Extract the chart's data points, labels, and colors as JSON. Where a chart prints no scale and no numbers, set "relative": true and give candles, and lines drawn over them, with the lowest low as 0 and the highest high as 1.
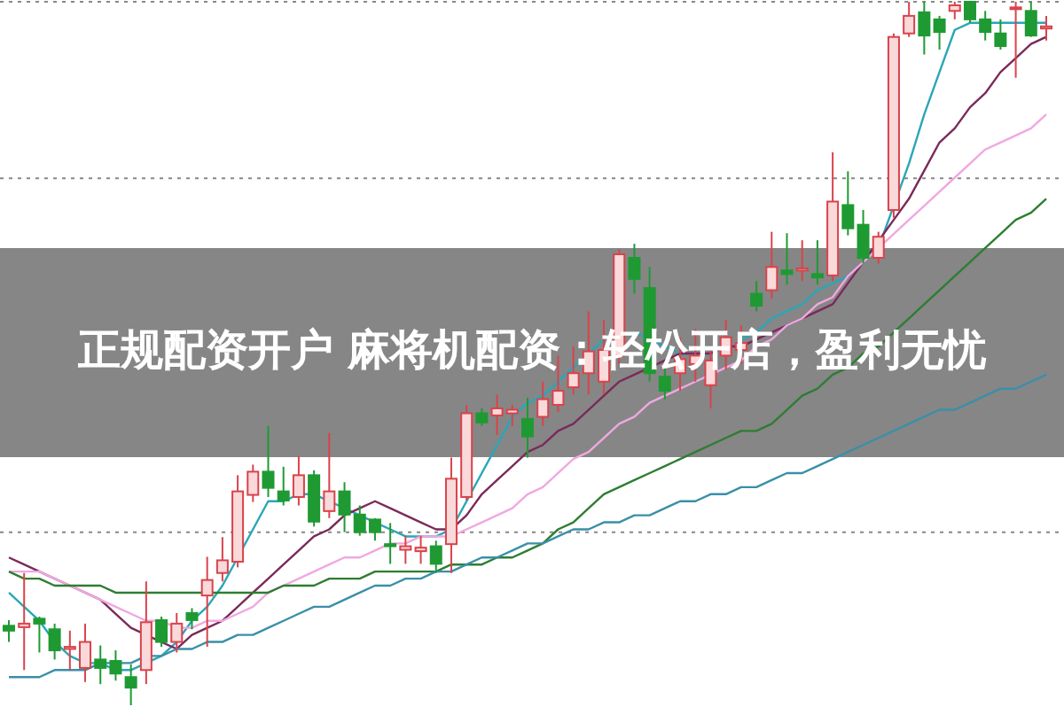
{
  "chart_data": {
    "type": "candlestick",
    "title": "正规配资开户 麻将机配资：轻松开店，盈利无忧",
    "relative": true,
    "categories": [
      null,
      null,
      null,
      null,
      null,
      null,
      null,
      null,
      null,
      null,
      null,
      null,
      null,
      null,
      null,
      null,
      null,
      null,
      null,
      null,
      null,
      null,
      null,
      null,
      null,
      null,
      null,
      null,
      null,
      null,
      null,
      null,
      null,
      null,
      null,
      null,
      null,
      null,
      null,
      null,
      null,
      null,
      null,
      null,
      null,
      null,
      null,
      null,
      null,
      null,
      null,
      null,
      null,
      null,
      null,
      null,
      null,
      null,
      null,
      null,
      null,
      null,
      null,
      null,
      null,
      null,
      null,
      null,
      null
    ],
    "ohlc": [
      [
        0.113,
        0.121,
        0.09,
        0.106
      ],
      [
        0.111,
        0.188,
        0.05,
        0.116
      ],
      [
        0.123,
        0.126,
        0.075,
        0.116
      ],
      [
        0.108,
        0.116,
        0.065,
        0.078
      ],
      [
        0.08,
        0.106,
        0.05,
        0.083
      ],
      [
        0.053,
        0.116,
        0.033,
        0.09
      ],
      [
        0.065,
        0.085,
        0.03,
        0.053
      ],
      [
        0.063,
        0.078,
        0.035,
        0.045
      ],
      [
        0.04,
        0.058,
        0,
        0.025
      ],
      [
        0.05,
        0.176,
        0.03,
        0.118
      ],
      [
        0.121,
        0.126,
        0.083,
        0.09
      ],
      [
        0.09,
        0.131,
        0.075,
        0.116
      ],
      [
        0.131,
        0.138,
        0.108,
        0.121
      ],
      [
        0.156,
        0.211,
        0.083,
        0.178
      ],
      [
        0.188,
        0.239,
        0.176,
        0.206
      ],
      [
        0.204,
        0.327,
        0.196,
        0.304
      ],
      [
        0.299,
        0.342,
        0.289,
        0.332
      ],
      [
        0.332,
        0.397,
        0.296,
        0.309
      ],
      [
        0.304,
        0.339,
        0.284,
        0.291
      ],
      [
        0.296,
        0.354,
        0.284,
        0.327
      ],
      [
        0.327,
        0.334,
        0.254,
        0.261
      ],
      [
        0.276,
        0.387,
        0.266,
        0.304
      ],
      [
        0.304,
        0.317,
        0.246,
        0.271
      ],
      [
        0.271,
        0.284,
        0.241,
        0.246
      ],
      [
        0.264,
        0.266,
        0.234,
        0.246
      ],
      [
        0.229,
        0.259,
        0.201,
        0.226
      ],
      [
        0.221,
        0.241,
        0.201,
        0.226
      ],
      [
        0.219,
        0.241,
        0.201,
        0.224
      ],
      [
        0.226,
        0.234,
        0.188,
        0.201
      ],
      [
        0.229,
        0.352,
        0.188,
        0.322
      ],
      [
        0.296,
        0.427,
        0.291,
        0.415
      ],
      [
        0.415,
        0.422,
        0.397,
        0.402
      ],
      [
        0.412,
        0.442,
        0.384,
        0.422
      ],
      [
        0.415,
        0.427,
        0.397,
        0.42
      ],
      [
        0.407,
        0.437,
        0.352,
        0.382
      ],
      [
        0.41,
        0.46,
        0.397,
        0.435
      ],
      [
        0.427,
        0.497,
        0.417,
        0.447
      ],
      [
        0.452,
        0.51,
        0.442,
        0.472
      ],
      [
        0.472,
        0.56,
        0.442,
        0.503
      ],
      [
        0.46,
        0.548,
        0.442,
        0.505
      ],
      [
        0.497,
        0.648,
        0.485,
        0.641
      ],
      [
        0.636,
        0.656,
        0.585,
        0.606
      ],
      [
        0.593,
        0.623,
        0.46,
        0.472
      ],
      [
        0.467,
        0.485,
        0.435,
        0.447
      ],
      [
        0.472,
        0.523,
        0.447,
        0.492
      ],
      [
        0.485,
        0.535,
        0.46,
        0.497
      ],
      [
        0.455,
        0.51,
        0.422,
        0.49
      ],
      [
        0.497,
        0.548,
        0.477,
        0.523
      ],
      [
        0.505,
        0.54,
        0.485,
        0.515
      ],
      [
        0.585,
        0.603,
        0.56,
        0.568
      ],
      [
        0.59,
        0.673,
        0.578,
        0.623
      ],
      [
        0.618,
        0.671,
        0.598,
        0.613
      ],
      [
        0.618,
        0.661,
        0.603,
        0.621
      ],
      [
        0.613,
        0.661,
        0.598,
        0.608
      ],
      [
        0.611,
        0.786,
        0.603,
        0.716
      ],
      [
        0.711,
        0.759,
        0.668,
        0.678
      ],
      [
        0.683,
        0.704,
        0.628,
        0.636
      ],
      [
        0.636,
        0.673,
        0.628,
        0.666
      ],
      [
        0.704,
        0.955,
        0.693,
        0.95
      ],
      [
        0.955,
        1,
        0.95,
        0.98
      ],
      [
        0.985,
        1,
        0.925,
        0.952
      ],
      [
        0.975,
        0.98,
        0.932,
        0.957
      ],
      [
        0.987,
        1,
        0.975,
        0.995
      ],
      [
        1,
        1,
        0.97,
        0.975
      ],
      [
        0.975,
        0.987,
        0.945,
        0.957
      ],
      [
        0.955,
        0.975,
        0.932,
        0.937
      ],
      [
        0.99,
        1,
        0.892,
        0.992
      ],
      [
        0.987,
        1,
        0.95,
        0.952
      ],
      [
        0.962,
        0.98,
        0.945,
        0.965
      ]
    ],
    "series": [
      {
        "type": "line",
        "color": "#2aa6b8",
        "values": [
          0.16,
          0.14,
          0.12,
          0.09,
          0.07,
          0.06,
          0.06,
          0.05,
          0.05,
          0.06,
          0.07,
          0.09,
          0.12,
          0.14,
          0.17,
          0.21,
          0.25,
          0.29,
          0.29,
          0.3,
          0.3,
          0.29,
          0.28,
          0.27,
          0.26,
          0.25,
          0.24,
          0.24,
          0.24,
          0.25,
          0.29,
          0.33,
          0.37,
          0.41,
          0.43,
          0.44,
          0.46,
          0.48,
          0.5,
          0.52,
          null,
          0.53,
          0.52,
          0.51,
          0.5,
          0.5,
          0.5,
          null,
          0.52,
          0.53,
          0.55,
          0.56,
          0.57,
          0.59,
          0.6,
          0.61,
          0.63,
          0.65,
          0.71,
          0.77,
          0.84,
          0.9,
          0.96,
          0.97,
          0.97,
          0.97,
          0.97,
          0.97,
          0.97
        ]
      },
      {
        "type": "line",
        "color": "#7a2a5a",
        "values": [
          0.21,
          0.2,
          0.19,
          0.18,
          0.17,
          0.16,
          0.15,
          0.13,
          0.11,
          0.1,
          0.09,
          0.08,
          0.1,
          0.11,
          0.12,
          0.14,
          0.16,
          0.18,
          0.2,
          0.22,
          0.24,
          0.25,
          0.27,
          0.28,
          0.29,
          0.28,
          0.27,
          0.26,
          0.25,
          0.25,
          0.27,
          0.3,
          0.32,
          0.34,
          0.36,
          0.37,
          0.39,
          0.4,
          0.42,
          0.44,
          0.46,
          0.47,
          0.48,
          0.49,
          0.5,
          0.5,
          0.5,
          0.51,
          0.51,
          0.52,
          0.53,
          0.54,
          0.55,
          0.56,
          0.57,
          0.6,
          0.63,
          0.66,
          0.69,
          0.72,
          0.76,
          0.8,
          0.82,
          0.85,
          0.87,
          0.9,
          0.92,
          0.94,
          0.95
        ]
      },
      {
        "type": "line",
        "color": "#f0a8e0",
        "values": [
          0.19,
          0.19,
          0.19,
          0.18,
          0.17,
          0.16,
          0.15,
          0.14,
          0.13,
          0.12,
          0.12,
          0.11,
          0.11,
          0.12,
          0.12,
          0.13,
          0.14,
          0.16,
          0.17,
          0.18,
          0.19,
          0.2,
          0.21,
          0.21,
          0.22,
          0.23,
          0.23,
          0.24,
          0.24,
          0.24,
          0.25,
          0.26,
          0.27,
          0.28,
          0.3,
          0.31,
          0.33,
          0.35,
          0.36,
          0.38,
          0.4,
          0.41,
          0.43,
          0.44,
          0.45,
          0.46,
          0.47,
          0.48,
          0.49,
          0.51,
          0.52,
          0.54,
          0.55,
          0.57,
          0.58,
          0.61,
          0.63,
          0.65,
          0.67,
          0.69,
          0.71,
          0.73,
          0.75,
          0.77,
          0.79,
          0.8,
          0.81,
          0.82,
          0.84
        ]
      },
      {
        "type": "line",
        "color": "#2e7d32",
        "values": [
          0.19,
          0.18,
          0.18,
          0.17,
          0.17,
          0.17,
          0.17,
          0.16,
          0.16,
          0.16,
          0.16,
          0.16,
          0.16,
          0.16,
          0.16,
          0.16,
          0.16,
          0.16,
          0.17,
          0.17,
          0.17,
          0.18,
          0.18,
          0.18,
          0.19,
          0.19,
          0.19,
          0.19,
          0.19,
          0.2,
          0.2,
          0.2,
          0.21,
          0.21,
          0.22,
          0.23,
          0.25,
          0.26,
          0.28,
          0.3,
          0.31,
          0.32,
          0.33,
          0.34,
          0.35,
          0.36,
          0.37,
          0.38,
          0.39,
          0.39,
          0.4,
          0.42,
          0.44,
          0.45,
          0.47,
          0.48,
          0.5,
          0.51,
          0.53,
          0.55,
          0.57,
          0.59,
          0.61,
          0.63,
          0.65,
          0.67,
          0.69,
          0.7,
          0.72
        ]
      },
      {
        "type": "line",
        "color": "#3a8fa8",
        "values": [
          0.04,
          0.04,
          0.04,
          0.05,
          0.05,
          0.05,
          0.06,
          0.06,
          0.06,
          0.07,
          0.07,
          0.08,
          0.08,
          0.09,
          0.09,
          0.1,
          0.1,
          0.11,
          0.12,
          0.13,
          0.14,
          0.14,
          0.15,
          0.16,
          0.17,
          0.17,
          0.18,
          0.18,
          0.19,
          0.19,
          0.2,
          0.21,
          0.21,
          0.22,
          0.23,
          0.23,
          0.24,
          0.25,
          0.25,
          0.26,
          0.26,
          0.27,
          0.27,
          0.28,
          0.29,
          0.29,
          0.3,
          0.3,
          0.31,
          0.31,
          0.32,
          0.33,
          0.33,
          0.34,
          0.35,
          0.36,
          0.37,
          0.38,
          0.39,
          0.4,
          0.41,
          0.42,
          0.42,
          0.43,
          0.44,
          0.45,
          0.45,
          0.46,
          0.47
        ]
      }
    ],
    "ref_lines": [
      {
        "axis": "y",
        "value": 1,
        "line_style": "dotted",
        "color": "#888888"
      },
      {
        "axis": "y",
        "value": 0.749,
        "line_style": "dotted",
        "color": "#888888"
      },
      {
        "axis": "y",
        "value": 0.246,
        "line_style": "dotted",
        "color": "#888888"
      }
    ]
  }
}
